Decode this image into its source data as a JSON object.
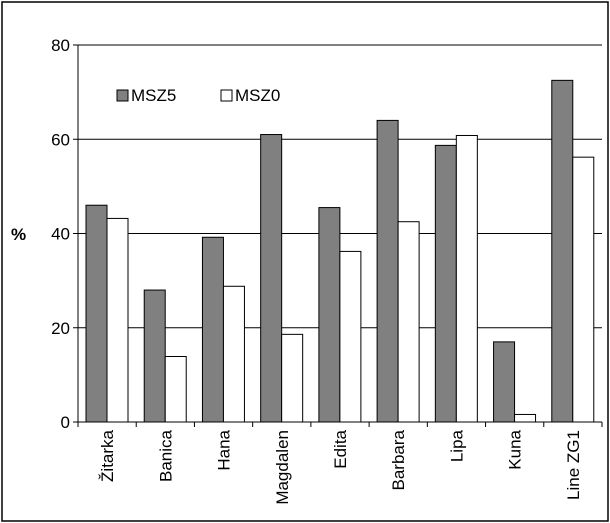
{
  "chart_data": {
    "type": "bar",
    "categories": [
      "Žitarka",
      "Banica",
      "Hana",
      "Magdalen",
      "Edita",
      "Barbara",
      "Lipa",
      "Kuna",
      "Line ZG1"
    ],
    "series": [
      {
        "name": "MSZ5",
        "values": [
          46,
          28,
          39.2,
          61,
          45.5,
          64,
          58.7,
          17,
          72.5
        ],
        "color": "#808080"
      },
      {
        "name": "MSZ0",
        "values": [
          43.2,
          13.9,
          28.8,
          18.6,
          36.2,
          42.5,
          60.8,
          1.6,
          56.2
        ],
        "color": "#ffffff"
      }
    ],
    "title": "",
    "xlabel": "",
    "ylabel": "%",
    "ylim": [
      0,
      80
    ],
    "yticks": [
      0,
      20,
      40,
      60,
      80
    ],
    "grid": true,
    "legend": "top-left"
  }
}
